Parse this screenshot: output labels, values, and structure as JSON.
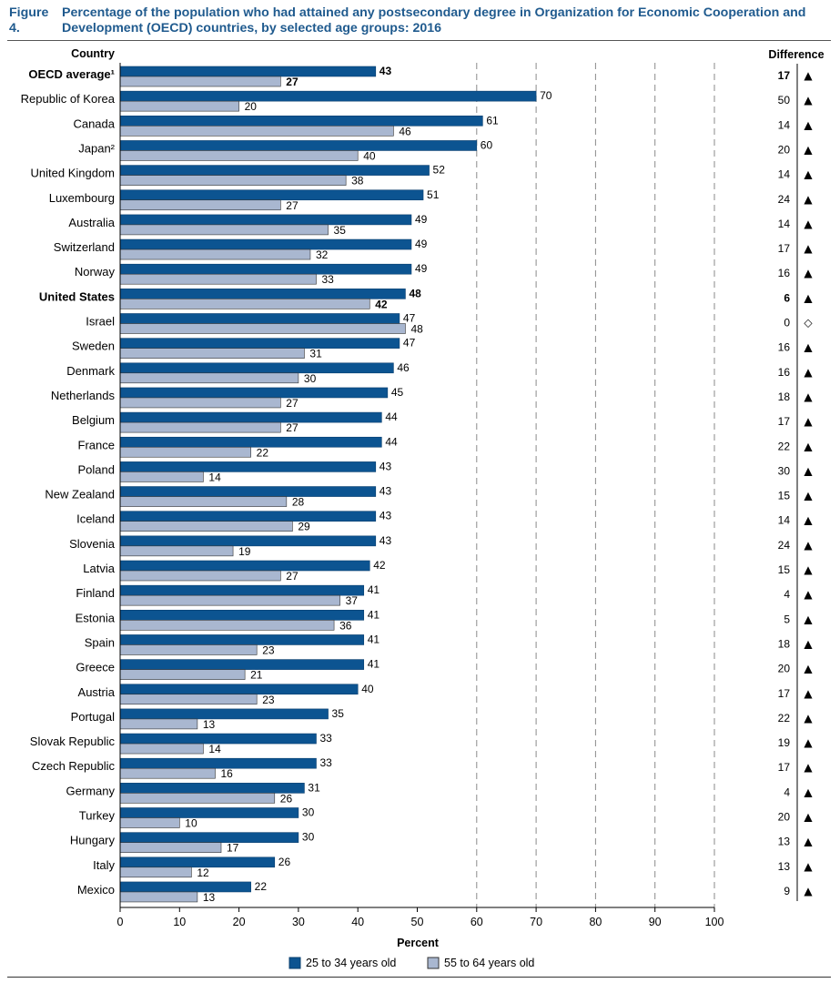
{
  "figure": {
    "label": "Figure 4.",
    "title": "Percentage of the population who had attained any postsecondary degree in Organization for Economic Cooperation and Development (OECD) countries, by selected age groups: 2016"
  },
  "chart_data": {
    "type": "bar",
    "orientation": "horizontal",
    "category_header": "Country",
    "difference_header": "Difference",
    "xlabel": "Percent",
    "xlim": [
      0,
      100
    ],
    "xticks": [
      "0",
      "10",
      "20",
      "30",
      "40",
      "50",
      "60",
      "70",
      "80",
      "90",
      "100"
    ],
    "grid": "vertical dashed at 60, 70, 80, 90, 100",
    "legend_position": "bottom",
    "colors": {
      "series1": "#0c5491",
      "series2": "#a9b7d0",
      "grid": "#8a8a8a",
      "axis": "#000000"
    },
    "categories": [
      "OECD average¹",
      "Republic of Korea",
      "Canada",
      "Japan²",
      "United Kingdom",
      "Luxembourg",
      "Australia",
      "Switzerland",
      "Norway",
      "United States",
      "Israel",
      "Sweden",
      "Denmark",
      "Netherlands",
      "Belgium",
      "France",
      "Poland",
      "New Zealand",
      "Iceland",
      "Slovenia",
      "Latvia",
      "Finland",
      "Estonia",
      "Spain",
      "Greece",
      "Austria",
      "Portugal",
      "Slovak Republic",
      "Czech Republic",
      "Germany",
      "Turkey",
      "Hungary",
      "Italy",
      "Mexico"
    ],
    "bold_categories": [
      "OECD average¹",
      "United States"
    ],
    "series": [
      {
        "name": "25 to 34 years old",
        "values": [
          43,
          70,
          61,
          60,
          52,
          51,
          49,
          49,
          49,
          48,
          47,
          47,
          46,
          45,
          44,
          44,
          43,
          43,
          43,
          43,
          42,
          41,
          41,
          41,
          41,
          40,
          35,
          33,
          33,
          31,
          30,
          30,
          26,
          22
        ]
      },
      {
        "name": "55 to 64 years old",
        "values": [
          27,
          20,
          46,
          40,
          38,
          27,
          35,
          32,
          33,
          42,
          48,
          31,
          30,
          27,
          27,
          22,
          14,
          28,
          29,
          19,
          27,
          37,
          36,
          23,
          21,
          23,
          13,
          14,
          16,
          26,
          10,
          17,
          12,
          13
        ]
      }
    ],
    "difference": [
      17,
      50,
      14,
      20,
      14,
      24,
      14,
      17,
      16,
      6,
      0,
      16,
      16,
      18,
      17,
      22,
      30,
      15,
      14,
      24,
      15,
      4,
      5,
      18,
      20,
      17,
      22,
      19,
      17,
      4,
      20,
      13,
      13,
      9
    ],
    "significance_symbols": [
      "▲",
      "▲",
      "▲",
      "▲",
      "▲",
      "▲",
      "▲",
      "▲",
      "▲",
      "▲",
      "◇",
      "▲",
      "▲",
      "▲",
      "▲",
      "▲",
      "▲",
      "▲",
      "▲",
      "▲",
      "▲",
      "▲",
      "▲",
      "▲",
      "▲",
      "▲",
      "▲",
      "▲",
      "▲",
      "▲",
      "▲",
      "▲",
      "▲",
      "▲"
    ]
  }
}
